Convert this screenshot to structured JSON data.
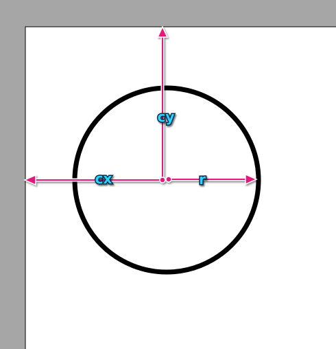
{
  "diagram": {
    "labels": {
      "cy": "cy",
      "cx": "cx",
      "r": "r"
    },
    "colors": {
      "background": "#a6a6a6",
      "canvas": "#ffffff",
      "circle_stroke": "#000000",
      "arrow": "#e6157a",
      "label_fill": "#2ad4ff",
      "label_outline": "#0a2a4a"
    }
  }
}
